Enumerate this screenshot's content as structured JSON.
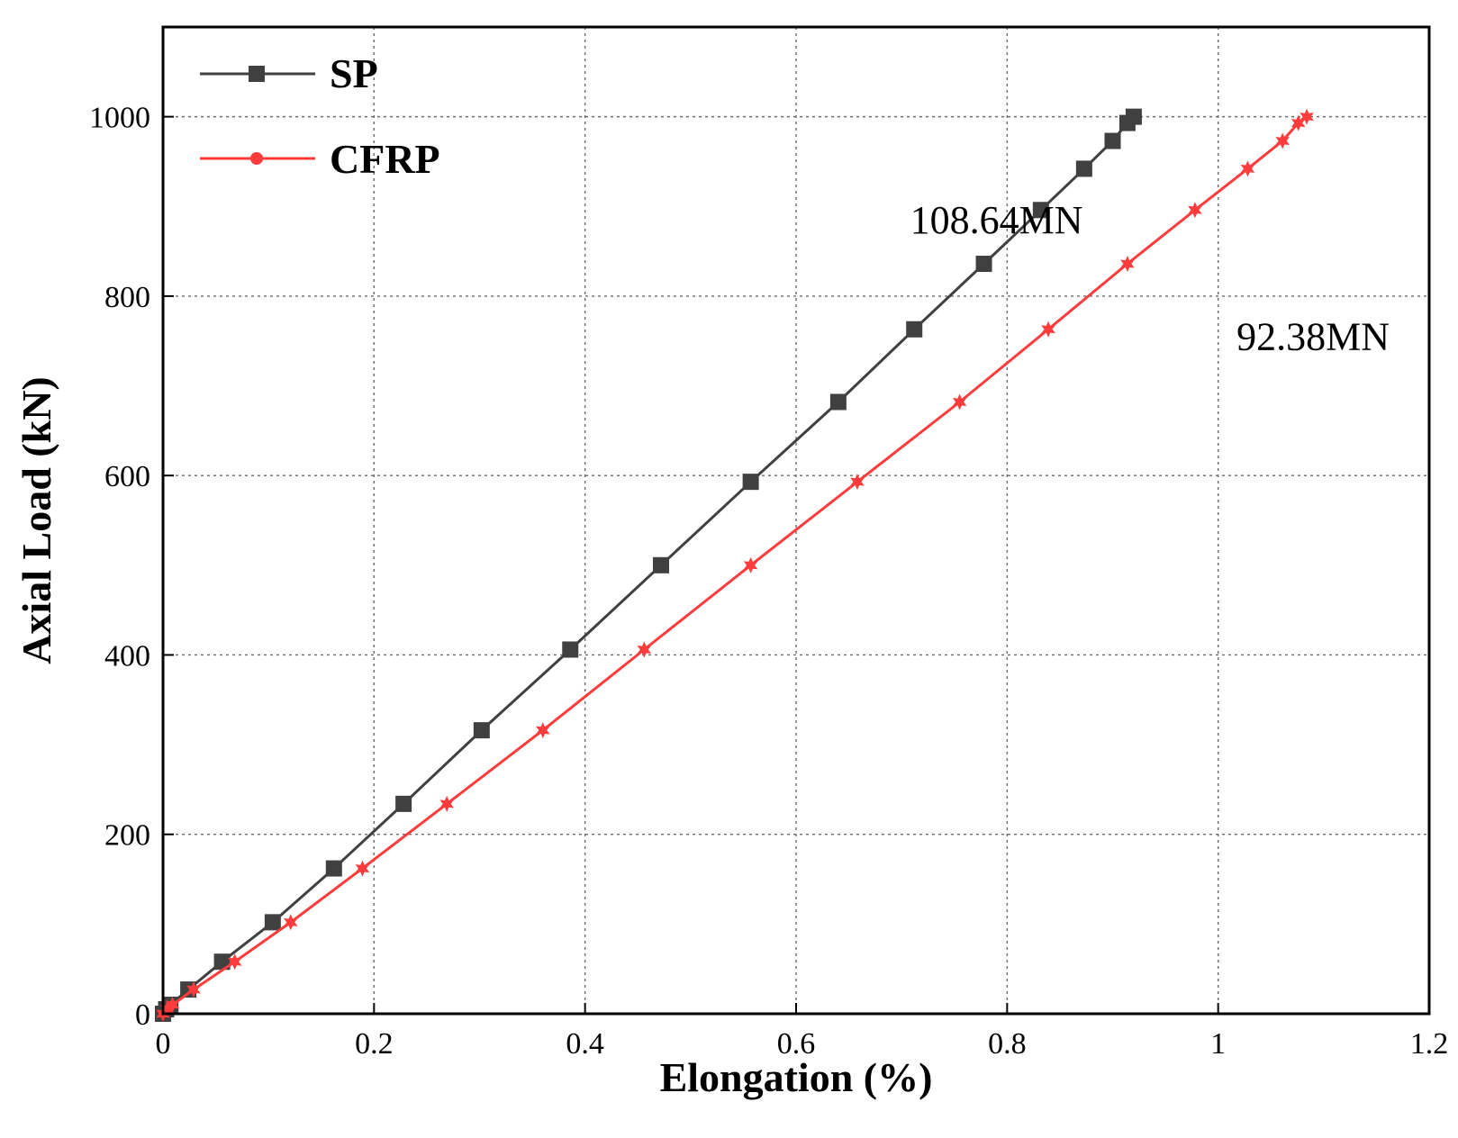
{
  "chart_data": {
    "type": "line",
    "title": "",
    "xlabel": "Elongation (%)",
    "ylabel": "Axial Load (kN)",
    "xlim": [
      0,
      1.2
    ],
    "ylim": [
      0,
      1100
    ],
    "xticks": [
      0,
      0.2,
      0.4,
      0.6,
      0.8,
      1.0,
      1.2
    ],
    "xtick_labels": [
      "0",
      "0.2",
      "0.4",
      "0.6",
      "0.8",
      "1",
      "1.2"
    ],
    "yticks": [
      0,
      200,
      400,
      600,
      800,
      1000
    ],
    "ytick_labels": [
      "0",
      "200",
      "400",
      "600",
      "800",
      "1000"
    ],
    "grid": true,
    "legend_position": "top-left",
    "series": [
      {
        "name": "SP",
        "color": "#404040",
        "marker": "square",
        "x": [
          0.0,
          0.003,
          0.007,
          0.024,
          0.056,
          0.104,
          0.162,
          0.228,
          0.302,
          0.386,
          0.472,
          0.557,
          0.64,
          0.712,
          0.778,
          0.832,
          0.873,
          0.9,
          0.914,
          0.92
        ],
        "y": [
          0,
          5,
          10,
          27,
          58,
          102,
          162,
          234,
          316,
          406,
          500,
          593,
          682,
          763,
          836,
          896,
          942,
          973,
          993,
          1000
        ]
      },
      {
        "name": "CFRP",
        "color": "#ff3b3b",
        "marker": "star",
        "x": [
          0.0,
          0.004,
          0.009,
          0.029,
          0.068,
          0.121,
          0.189,
          0.269,
          0.36,
          0.456,
          0.557,
          0.658,
          0.755,
          0.839,
          0.914,
          0.978,
          1.028,
          1.061,
          1.076,
          1.084
        ],
        "y": [
          0,
          5,
          10,
          27,
          58,
          102,
          162,
          234,
          316,
          406,
          500,
          593,
          682,
          763,
          836,
          896,
          942,
          973,
          993,
          1000
        ]
      }
    ],
    "annotations": [
      {
        "text": "108.64MN",
        "x": 0.79,
        "y": 885
      },
      {
        "text": "92.38MN",
        "x": 1.09,
        "y": 755
      }
    ]
  }
}
